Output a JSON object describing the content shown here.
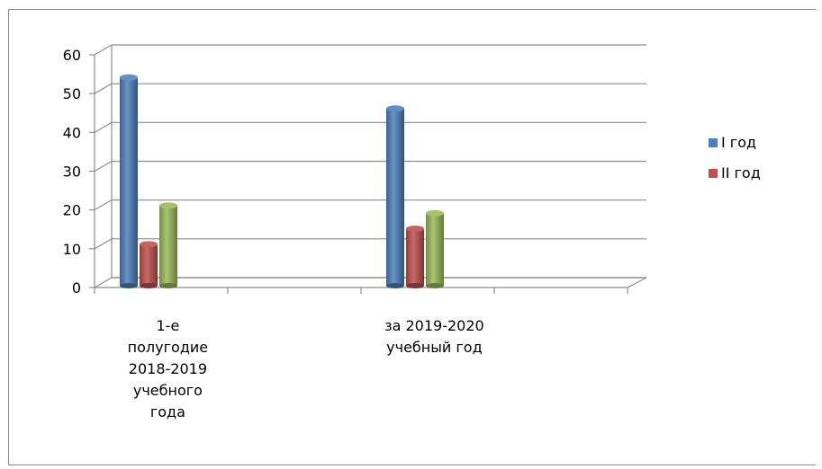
{
  "chart_data": {
    "type": "bar",
    "style": "3d-cylinder",
    "categories": [
      [
        "1-е",
        "полугодие",
        "2018-2019",
        "учебного",
        "года"
      ],
      [
        "за 2019-2020",
        "учебный год"
      ]
    ],
    "series": [
      {
        "name": "I год",
        "color": "#4f81bd",
        "values": [
          53,
          45
        ]
      },
      {
        "name": "II год",
        "color": "#c0504d",
        "values": [
          10,
          14
        ]
      },
      {
        "name": "",
        "color": "#9bbb59",
        "values": [
          20,
          18
        ]
      }
    ],
    "ylim": [
      0,
      60
    ],
    "yticks": [
      0,
      10,
      20,
      30,
      40,
      50,
      60
    ],
    "grid": true,
    "legend_position": "right",
    "legend_entries": [
      "I год",
      "II год"
    ]
  }
}
